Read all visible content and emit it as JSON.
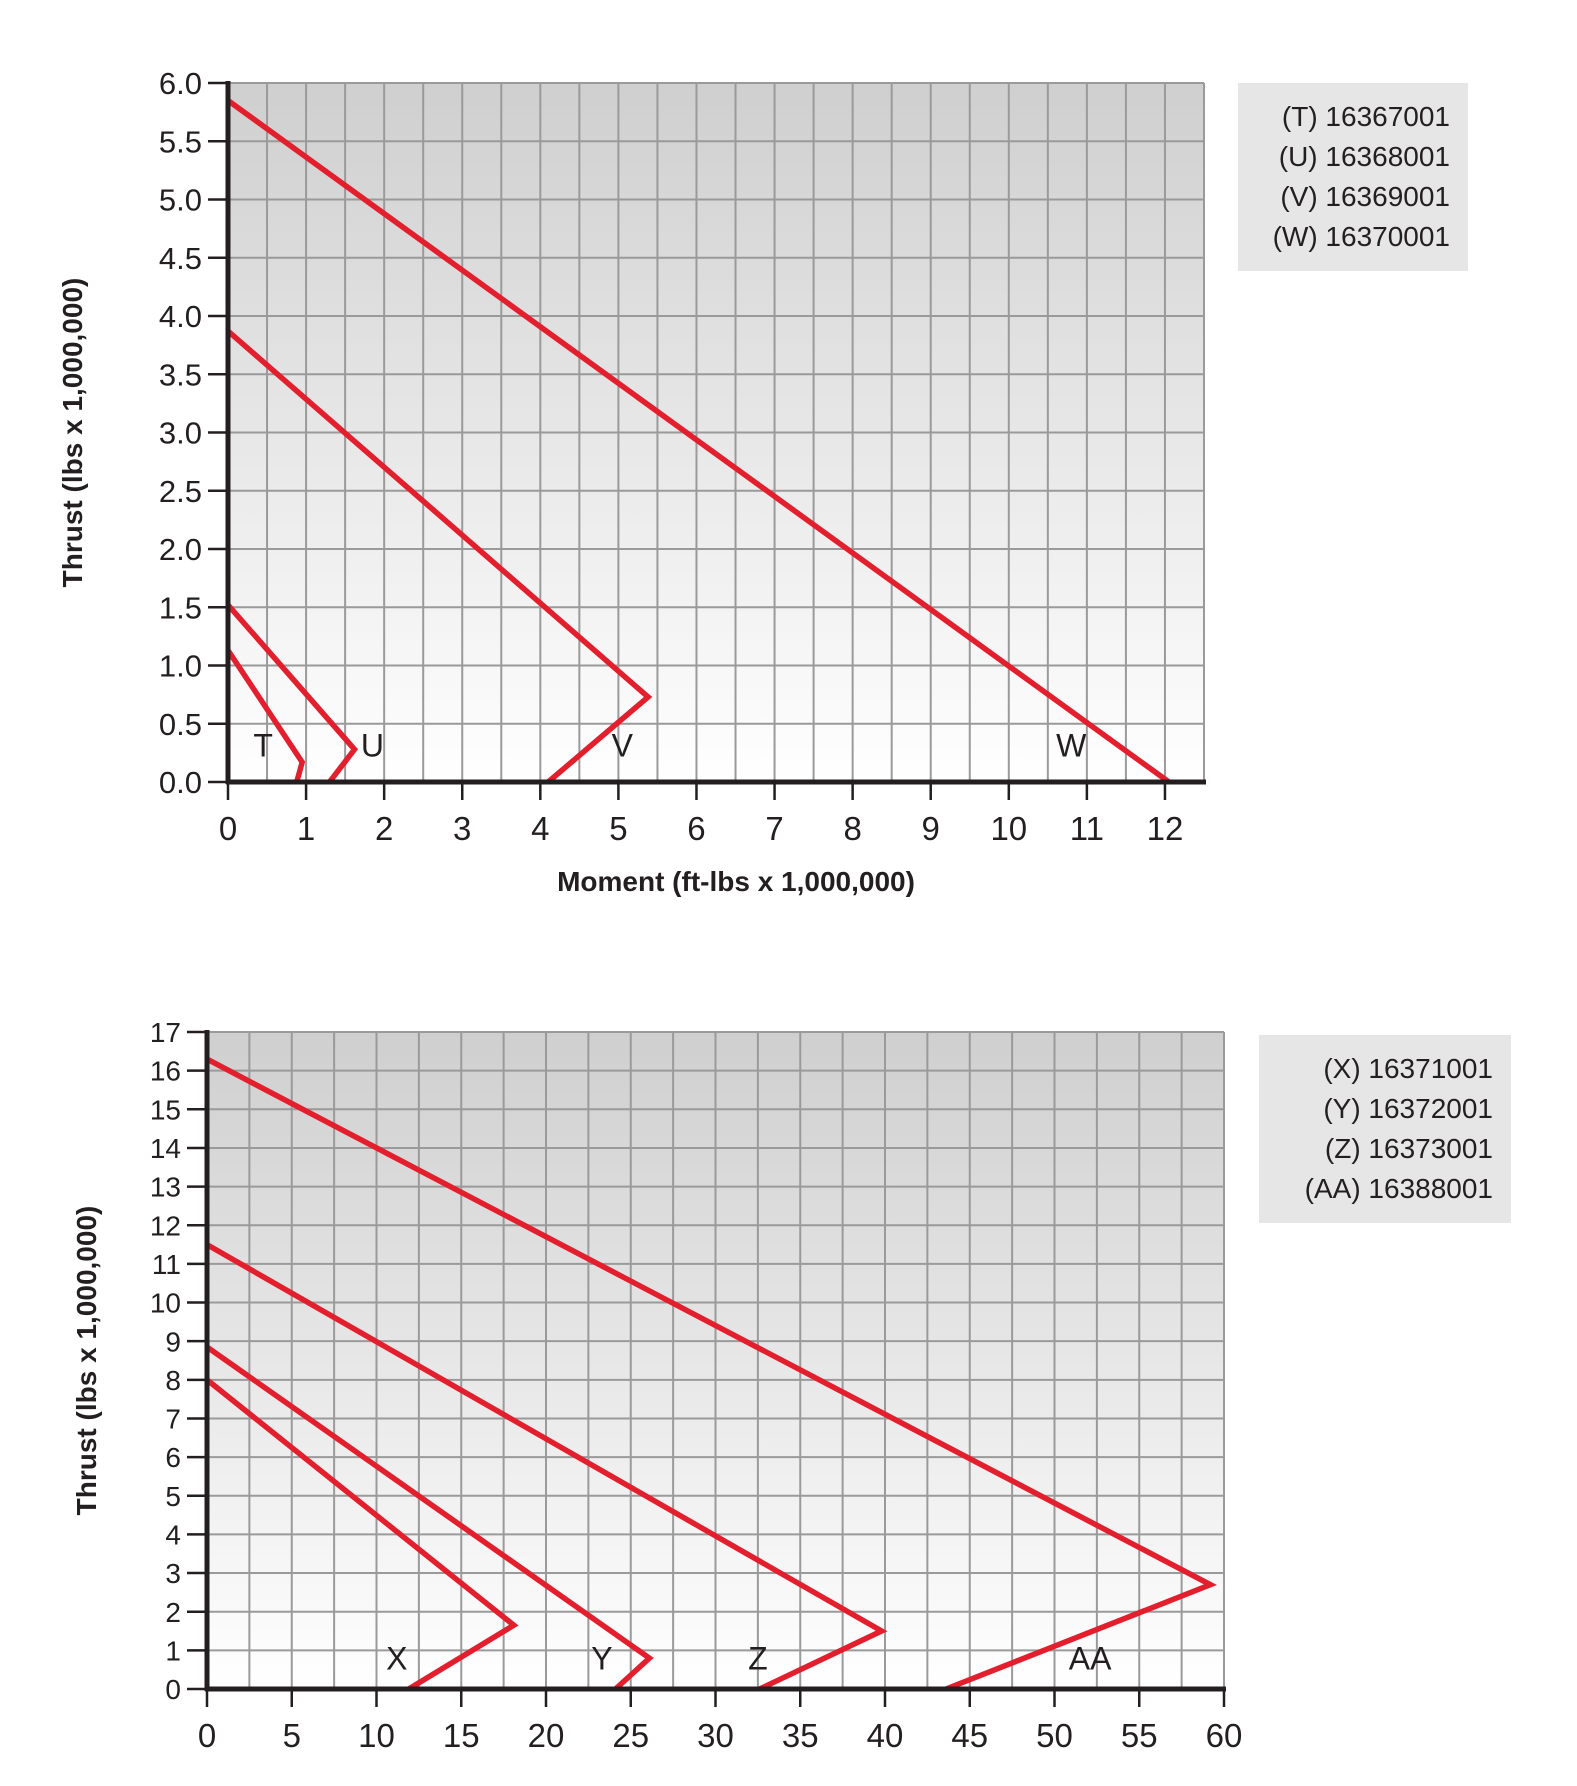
{
  "charts": [
    {
      "chart_data": {
        "type": "line",
        "xlabel": "Moment (ft-lbs x 1,000,000)",
        "ylabel": "Thrust (lbs x 1,000,000)",
        "xlim": [
          0,
          12.5
        ],
        "ylim": [
          0,
          6.0
        ],
        "x_ticks": [
          "0",
          "1",
          "2",
          "3",
          "4",
          "5",
          "6",
          "7",
          "8",
          "9",
          "10",
          "11",
          "12"
        ],
        "y_ticks": [
          "0.0",
          "0.5",
          "1.0",
          "1.5",
          "2.0",
          "2.5",
          "3.0",
          "3.5",
          "4.0",
          "4.5",
          "5.0",
          "5.5",
          "6.0"
        ],
        "x_tick_values": [
          0,
          1,
          2,
          3,
          4,
          5,
          6,
          7,
          8,
          9,
          10,
          11,
          12
        ],
        "y_tick_values": [
          0,
          0.5,
          1,
          1.5,
          2,
          2.5,
          3,
          3.5,
          4,
          4.5,
          5,
          5.5,
          6
        ],
        "x_grid_step": 0.5,
        "y_grid_step": 0.5,
        "grid": true,
        "series": [
          {
            "name": "T",
            "x": [
              0,
              0.95,
              0.88
            ],
            "y": [
              1.13,
              0.17,
              0
            ]
          },
          {
            "name": "U",
            "x": [
              0,
              1.62,
              1.3
            ],
            "y": [
              1.52,
              0.28,
              0
            ]
          },
          {
            "name": "V",
            "x": [
              0,
              5.38,
              4.1
            ],
            "y": [
              3.87,
              0.73,
              0
            ]
          },
          {
            "name": "W",
            "x": [
              0,
              12.05
            ],
            "y": [
              5.85,
              0
            ]
          }
        ],
        "series_labels": [
          {
            "text": "T",
            "x": 0.45,
            "y": 0.22
          },
          {
            "text": "U",
            "x": 1.85,
            "y": 0.22
          },
          {
            "text": "V",
            "x": 5.05,
            "y": 0.22
          },
          {
            "text": "W",
            "x": 10.8,
            "y": 0.22
          }
        ]
      },
      "legend": [
        "(T) 16367001",
        "(U) 16368001",
        "(V) 16369001",
        "(W) 16370001"
      ]
    },
    {
      "chart_data": {
        "type": "line",
        "xlabel": "",
        "ylabel": "Thrust (lbs x 1,000,000)",
        "xlim": [
          0,
          60
        ],
        "ylim": [
          0,
          17
        ],
        "x_ticks": [
          "0",
          "5",
          "10",
          "15",
          "20",
          "25",
          "30",
          "35",
          "40",
          "45",
          "50",
          "55",
          "60"
        ],
        "y_ticks": [
          "0",
          "1",
          "2",
          "3",
          "4",
          "5",
          "6",
          "7",
          "8",
          "9",
          "10",
          "11",
          "12",
          "13",
          "14",
          "15",
          "16",
          "17"
        ],
        "x_tick_values": [
          0,
          5,
          10,
          15,
          20,
          25,
          30,
          35,
          40,
          45,
          50,
          55,
          60
        ],
        "y_tick_values": [
          0,
          1,
          2,
          3,
          4,
          5,
          6,
          7,
          8,
          9,
          10,
          11,
          12,
          13,
          14,
          15,
          16,
          17
        ],
        "x_grid_step": 2.5,
        "y_grid_step": 1,
        "grid": true,
        "series": [
          {
            "name": "X",
            "x": [
              0,
              18.1,
              11.9
            ],
            "y": [
              8.0,
              1.65,
              0
            ]
          },
          {
            "name": "Y",
            "x": [
              0,
              26.1,
              24.1
            ],
            "y": [
              8.85,
              0.8,
              0
            ]
          },
          {
            "name": "Z",
            "x": [
              0,
              39.8,
              32.6
            ],
            "y": [
              11.5,
              1.5,
              0
            ]
          },
          {
            "name": "AA",
            "x": [
              0,
              59.2,
              43.6
            ],
            "y": [
              16.3,
              2.7,
              0
            ]
          }
        ],
        "series_labels": [
          {
            "text": "X",
            "x": 11.2,
            "y": 0.5
          },
          {
            "text": "Y",
            "x": 23.3,
            "y": 0.5
          },
          {
            "text": "Z",
            "x": 32.5,
            "y": 0.5
          },
          {
            "text": "AA",
            "x": 52.1,
            "y": 0.5
          }
        ]
      },
      "legend": [
        "(X) 16371001",
        "(Y) 16372001",
        "(Z) 16373001",
        "(AA) 16388001"
      ]
    }
  ],
  "colors": {
    "series_line": "#e31e2d",
    "grid": "#9a9a9a",
    "axis": "#231f20",
    "plot_top": "#cfcfcf",
    "plot_bottom": "#ffffff",
    "text": "#231f20"
  }
}
